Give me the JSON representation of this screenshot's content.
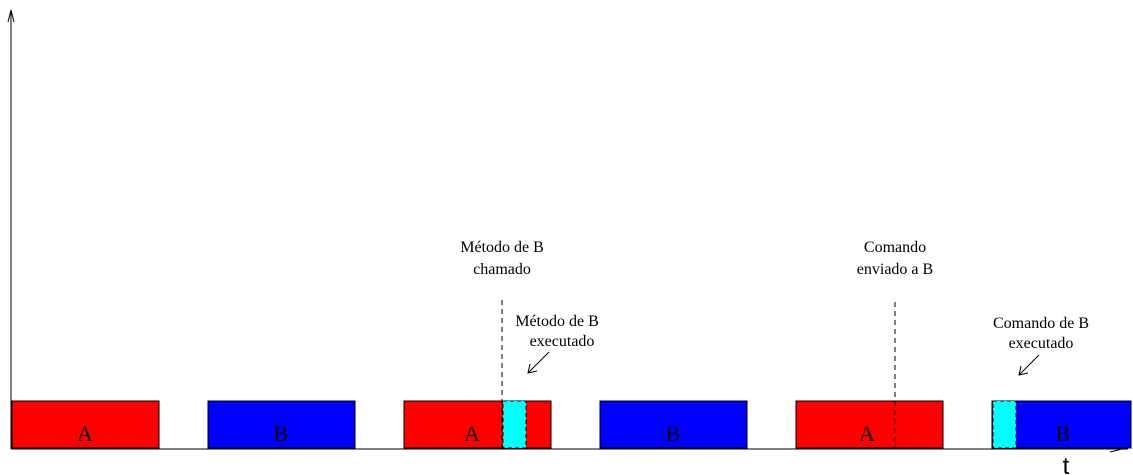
{
  "colors": {
    "process_a": "#ff0000",
    "process_b": "#0000ff",
    "execution": "#00ffff",
    "line": "#000000"
  },
  "axis": {
    "time_label": "t"
  },
  "blocks": [
    {
      "label": "A",
      "process": "A"
    },
    {
      "label": "B",
      "process": "B"
    },
    {
      "label": "A",
      "process": "A"
    },
    {
      "label": "B",
      "process": "B"
    },
    {
      "label": "A",
      "process": "A"
    },
    {
      "label": "B",
      "process": "B"
    }
  ],
  "annotations": {
    "method_called": [
      "Método de B",
      "chamado"
    ],
    "method_executed": [
      "Método de B",
      "executado"
    ],
    "command_sent": [
      "Comando",
      "enviado a B"
    ],
    "command_executed": [
      "Comando de B",
      "executado"
    ]
  }
}
